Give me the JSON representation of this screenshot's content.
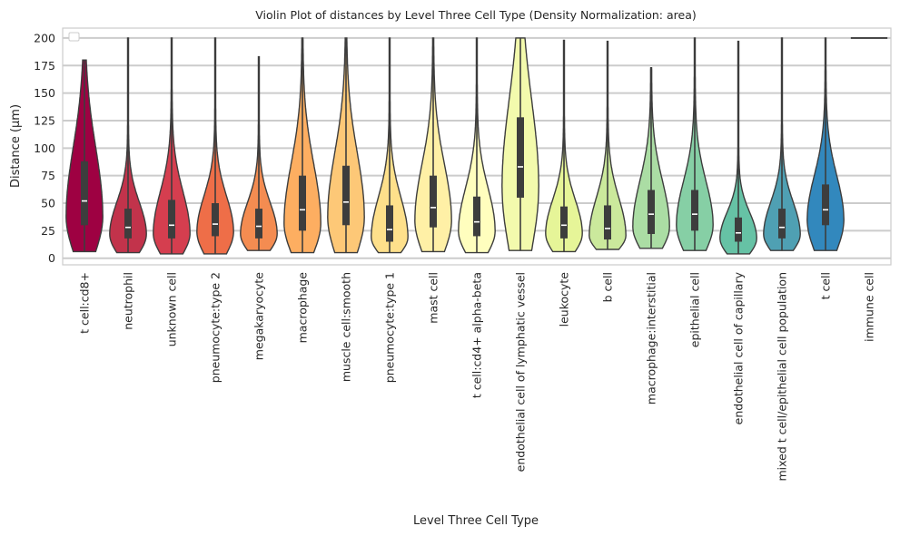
{
  "chart_data": {
    "type": "violin",
    "title": "Violin Plot of distances by Level Three Cell Type (Density Normalization: area)",
    "xlabel": "Level Three Cell Type",
    "ylabel": "Distance (µm)",
    "ylim": [
      -6,
      209
    ],
    "yticks": [
      0,
      25,
      50,
      75,
      100,
      125,
      150,
      175,
      200
    ],
    "grid": "horizontal",
    "legend": "top-left (empty)",
    "categories": [
      "t cell:cd8+",
      "neutrophil",
      "unknown cell",
      "pneumocyte:type 2",
      "megakaryocyte",
      "macrophage",
      "muscle cell:smooth",
      "pneumocyte:type 1",
      "mast cell",
      "t cell:cd4+ alpha-beta",
      "endothelial cell of lymphatic vessel",
      "leukocyte",
      "b cell",
      "macrophage:interstitial",
      "epithelial cell",
      "endothelial cell of capillary",
      "mixed t cell/epithelial cell population",
      "t cell",
      "immune cell"
    ],
    "colors": [
      "#9e0142",
      "#c2334b",
      "#d53e4f",
      "#ee6e48",
      "#f48c51",
      "#fdae61",
      "#fdc877",
      "#fee08b",
      "#fff0a6",
      "#fffebe",
      "#f3faad",
      "#e6f598",
      "#cbe99c",
      "#abdda4",
      "#86cfa5",
      "#66c2a5",
      "#4fa0b3",
      "#3288bd",
      "#5e4fa2"
    ],
    "stats": [
      {
        "min": 6,
        "q1": 30,
        "median": 52,
        "q3": 88,
        "max": 180
      },
      {
        "min": 5,
        "q1": 18,
        "median": 28,
        "q3": 45,
        "max": 200
      },
      {
        "min": 4,
        "q1": 18,
        "median": 30,
        "q3": 53,
        "max": 200
      },
      {
        "min": 4,
        "q1": 20,
        "median": 31,
        "q3": 50,
        "max": 200
      },
      {
        "min": 7,
        "q1": 18,
        "median": 29,
        "q3": 45,
        "max": 183
      },
      {
        "min": 5,
        "q1": 25,
        "median": 44,
        "q3": 75,
        "max": 200
      },
      {
        "min": 5,
        "q1": 30,
        "median": 51,
        "q3": 84,
        "max": 200
      },
      {
        "min": 5,
        "q1": 15,
        "median": 26,
        "q3": 48,
        "max": 200
      },
      {
        "min": 6,
        "q1": 28,
        "median": 46,
        "q3": 75,
        "max": 200
      },
      {
        "min": 5,
        "q1": 20,
        "median": 33,
        "q3": 56,
        "max": 200
      },
      {
        "min": 7,
        "q1": 55,
        "median": 83,
        "q3": 128,
        "max": 200
      },
      {
        "min": 6,
        "q1": 18,
        "median": 30,
        "q3": 47,
        "max": 198
      },
      {
        "min": 8,
        "q1": 17,
        "median": 27,
        "q3": 48,
        "max": 197
      },
      {
        "min": 9,
        "q1": 22,
        "median": 40,
        "q3": 62,
        "max": 173
      },
      {
        "min": 7,
        "q1": 25,
        "median": 40,
        "q3": 62,
        "max": 200
      },
      {
        "min": 4,
        "q1": 15,
        "median": 23,
        "q3": 37,
        "max": 197
      },
      {
        "min": 7,
        "q1": 18,
        "median": 28,
        "q3": 45,
        "max": 200
      },
      {
        "min": 7,
        "q1": 30,
        "median": 44,
        "q3": 67,
        "max": 200
      },
      {
        "min": 200,
        "q1": 200,
        "median": 200,
        "q3": 200,
        "max": 200
      }
    ]
  }
}
